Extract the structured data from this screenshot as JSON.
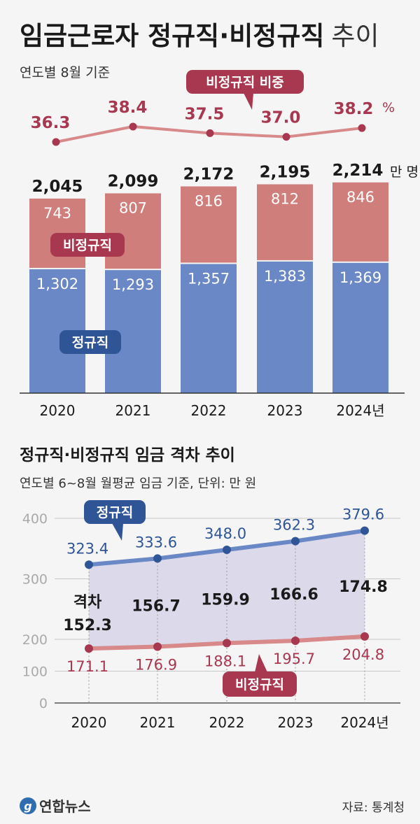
{
  "colors": {
    "regular": "#6a88c6",
    "regular_dark": "#2f5597",
    "nonregular": "#cf7e7b",
    "nonregular_dark": "#a8384f",
    "gap_fill": "#dcdaea",
    "text": "#1a1a1a",
    "grid": "#c8c8c8",
    "axis_label": "#aaaaaa"
  },
  "chart_data": [
    {
      "type": "bar",
      "stacked": true,
      "title": "임금근로자 정규직·비정규직",
      "title_suffix": "추이",
      "subtitle": "연도별 8월 기준",
      "categories": [
        "2020",
        "2021",
        "2022",
        "2023",
        "2024년"
      ],
      "series": [
        {
          "name": "정규직",
          "values": [
            1302,
            1293,
            1357,
            1383,
            1369
          ],
          "labels": [
            "1,302",
            "1,293",
            "1,357",
            "1,383",
            "1,369"
          ]
        },
        {
          "name": "비정규직",
          "values": [
            743,
            807,
            816,
            812,
            846
          ],
          "labels": [
            "743",
            "807",
            "816",
            "812",
            "846"
          ]
        }
      ],
      "totals": [
        "2,045",
        "2,099",
        "2,172",
        "2,195",
        "2,214"
      ],
      "total_unit": "만 명",
      "share_line": {
        "name": "비정규직 비중",
        "values": [
          36.3,
          38.4,
          37.5,
          37.0,
          38.2
        ],
        "labels": [
          "36.3",
          "38.4",
          "37.5",
          "37.0",
          "38.2"
        ],
        "unit": "%"
      }
    },
    {
      "type": "line",
      "title": "정규직·비정규직 임금 격차 추이",
      "subtitle": "연도별 6~8월 월평균 임금 기준, 단위: 만 원",
      "categories": [
        "2020",
        "2021",
        "2022",
        "2023",
        "2024년"
      ],
      "yticks": [
        "400",
        "300",
        "200",
        "100",
        "0"
      ],
      "ylim": [
        0,
        400
      ],
      "grid": true,
      "series": [
        {
          "name": "정규직",
          "values": [
            323.4,
            333.6,
            348.0,
            362.3,
            379.6
          ],
          "labels": [
            "323.4",
            "333.6",
            "348.0",
            "362.3",
            "379.6"
          ]
        },
        {
          "name": "비정규직",
          "values": [
            171.1,
            176.9,
            188.1,
            195.7,
            204.8
          ],
          "labels": [
            "171.1",
            "176.9",
            "188.1",
            "195.7",
            "204.8"
          ]
        }
      ],
      "gap": {
        "label": "격차",
        "values": [
          152.3,
          156.7,
          159.9,
          166.6,
          174.8
        ],
        "labels": [
          "152.3",
          "156.7",
          "159.9",
          "166.6",
          "174.8"
        ]
      }
    }
  ],
  "footer": {
    "logo": "연합뉴스",
    "source": "자료: 통계청"
  }
}
